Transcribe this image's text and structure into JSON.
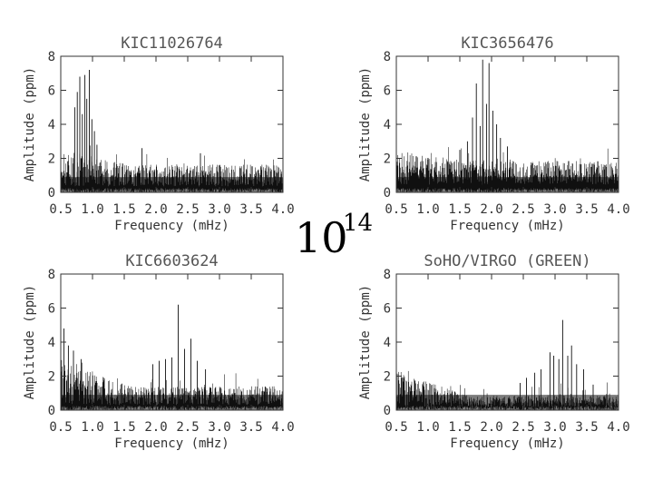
{
  "center_label": {
    "base": "10",
    "exponent": "14"
  },
  "chart_data": [
    {
      "type": "line",
      "title": "KIC11026764",
      "xlabel": "Frequency (mHz)",
      "ylabel": "Amplitude (ppm)",
      "xlim": [
        0.5,
        4.0
      ],
      "ylim": [
        0,
        8
      ],
      "xticks": [
        "0.5",
        "1.0",
        "1.5",
        "2.0",
        "2.5",
        "3.0",
        "3.5",
        "4.0"
      ],
      "yticks": [
        "0",
        "2",
        "4",
        "6",
        "8"
      ],
      "noise": {
        "base": 0.7,
        "spread": 1.3,
        "low_freq_boost": 0.9
      },
      "peaks": [
        {
          "x": 0.72,
          "y": 5.0
        },
        {
          "x": 0.76,
          "y": 5.9
        },
        {
          "x": 0.8,
          "y": 6.8
        },
        {
          "x": 0.84,
          "y": 4.6
        },
        {
          "x": 0.88,
          "y": 6.9
        },
        {
          "x": 0.91,
          "y": 5.5
        },
        {
          "x": 0.95,
          "y": 7.2
        },
        {
          "x": 0.99,
          "y": 4.3
        },
        {
          "x": 1.03,
          "y": 3.6
        },
        {
          "x": 1.07,
          "y": 2.8
        },
        {
          "x": 1.78,
          "y": 2.6
        },
        {
          "x": 2.7,
          "y": 2.3
        }
      ]
    },
    {
      "type": "line",
      "title": "KIC3656476",
      "xlabel": "Frequency (mHz)",
      "ylabel": "Amplitude (ppm)",
      "xlim": [
        0.5,
        4.0
      ],
      "ylim": [
        0,
        8
      ],
      "xticks": [
        "0.5",
        "1.0",
        "1.5",
        "2.0",
        "2.5",
        "3.0",
        "3.5",
        "4.0"
      ],
      "yticks": [
        "0",
        "2",
        "4",
        "6",
        "8"
      ],
      "noise": {
        "base": 0.9,
        "spread": 1.4,
        "low_freq_boost": 0.6
      },
      "peaks": [
        {
          "x": 1.62,
          "y": 3.0
        },
        {
          "x": 1.7,
          "y": 4.4
        },
        {
          "x": 1.76,
          "y": 6.4
        },
        {
          "x": 1.82,
          "y": 3.9
        },
        {
          "x": 1.86,
          "y": 7.8
        },
        {
          "x": 1.92,
          "y": 5.2
        },
        {
          "x": 1.96,
          "y": 7.6
        },
        {
          "x": 2.02,
          "y": 4.8
        },
        {
          "x": 2.08,
          "y": 4.0
        },
        {
          "x": 2.14,
          "y": 3.2
        },
        {
          "x": 2.25,
          "y": 2.7
        },
        {
          "x": 1.5,
          "y": 2.5
        }
      ]
    },
    {
      "type": "line",
      "title": "KIC6603624",
      "xlabel": "Frequency (mHz)",
      "ylabel": "Amplitude (ppm)",
      "xlim": [
        0.5,
        4.0
      ],
      "ylim": [
        0,
        8
      ],
      "xticks": [
        "0.5",
        "1.0",
        "1.5",
        "2.0",
        "2.5",
        "3.0",
        "3.5",
        "4.0"
      ],
      "yticks": [
        "0",
        "2",
        "4",
        "6",
        "8"
      ],
      "noise": {
        "base": 0.6,
        "spread": 1.1,
        "low_freq_boost": 1.6
      },
      "peaks": [
        {
          "x": 0.55,
          "y": 4.8
        },
        {
          "x": 0.62,
          "y": 3.8
        },
        {
          "x": 0.7,
          "y": 3.5
        },
        {
          "x": 0.82,
          "y": 3.0
        },
        {
          "x": 1.95,
          "y": 2.7
        },
        {
          "x": 2.05,
          "y": 2.9
        },
        {
          "x": 2.15,
          "y": 3.0
        },
        {
          "x": 2.25,
          "y": 3.1
        },
        {
          "x": 2.35,
          "y": 6.2
        },
        {
          "x": 2.45,
          "y": 3.6
        },
        {
          "x": 2.55,
          "y": 4.2
        },
        {
          "x": 2.65,
          "y": 2.9
        },
        {
          "x": 2.78,
          "y": 2.4
        }
      ]
    },
    {
      "type": "line",
      "title": "SoHO/VIRGO (GREEN)",
      "xlabel": "Frequency (mHz)",
      "ylabel": "Amplitude (ppm)",
      "xlim": [
        0.5,
        4.0
      ],
      "ylim": [
        0,
        8
      ],
      "xticks": [
        "0.5",
        "1.0",
        "1.5",
        "2.0",
        "2.5",
        "3.0",
        "3.5",
        "4.0"
      ],
      "yticks": [
        "0",
        "2",
        "4",
        "6",
        "8"
      ],
      "noise": {
        "base": 0.35,
        "spread": 0.7,
        "low_freq_boost": 1.5
      },
      "peaks": [
        {
          "x": 2.45,
          "y": 1.6
        },
        {
          "x": 2.55,
          "y": 1.9
        },
        {
          "x": 2.68,
          "y": 2.2
        },
        {
          "x": 2.78,
          "y": 2.4
        },
        {
          "x": 2.92,
          "y": 3.4
        },
        {
          "x": 2.98,
          "y": 3.2
        },
        {
          "x": 3.06,
          "y": 3.0
        },
        {
          "x": 3.12,
          "y": 5.3
        },
        {
          "x": 3.2,
          "y": 3.2
        },
        {
          "x": 3.26,
          "y": 3.8
        },
        {
          "x": 3.34,
          "y": 2.7
        },
        {
          "x": 3.45,
          "y": 2.4
        },
        {
          "x": 3.6,
          "y": 1.5
        }
      ]
    }
  ]
}
